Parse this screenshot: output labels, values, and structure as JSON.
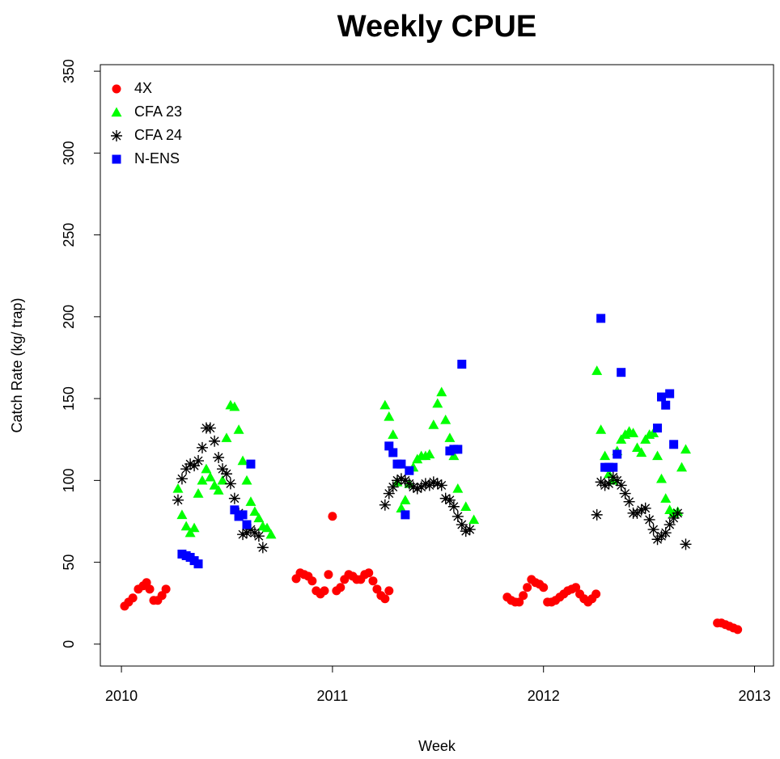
{
  "chart_data": {
    "type": "scatter",
    "title": "Weekly CPUE",
    "xlabel": "Week",
    "ylabel": "Catch Rate (kg/ trap)",
    "xlim": [
      2009.9,
      2013.09
    ],
    "ylim": [
      -13.4,
      354
    ],
    "xticks": [
      2010,
      2011,
      2012,
      2013
    ],
    "yticks": [
      0,
      50,
      100,
      150,
      200,
      250,
      300,
      350
    ],
    "legend": "top-left",
    "grid": false,
    "series": [
      {
        "name": "4X",
        "color": "#ff0000",
        "marker": "circle",
        "x": [
          2010.015,
          2010.034,
          2010.054,
          2010.08,
          2010.103,
          2010.119,
          2010.134,
          2010.153,
          2010.172,
          2010.192,
          2010.211,
          2010.828,
          2010.847,
          2010.866,
          2010.885,
          2010.904,
          2010.923,
          2010.943,
          2010.962,
          2010.981,
          2011.0,
          2011.019,
          2011.038,
          2011.057,
          2011.077,
          2011.096,
          2011.115,
          2011.134,
          2011.153,
          2011.172,
          2011.192,
          2011.211,
          2011.23,
          2011.249,
          2011.268,
          2011.828,
          2011.847,
          2011.866,
          2011.885,
          2011.904,
          2011.923,
          2011.943,
          2011.962,
          2011.981,
          2012.0,
          2012.019,
          2012.038,
          2012.057,
          2012.077,
          2012.096,
          2012.115,
          2012.134,
          2012.153,
          2012.172,
          2012.192,
          2012.211,
          2012.23,
          2012.249,
          2012.824,
          2012.843,
          2012.862,
          2012.881,
          2012.9,
          2012.92
        ],
        "values": [
          23.2,
          25.7,
          28.2,
          33.6,
          35.6,
          37.6,
          33.6,
          26.7,
          26.7,
          29.7,
          33.6,
          40.0,
          43.5,
          42.5,
          41.5,
          38.6,
          32.6,
          30.6,
          32.6,
          42.5,
          78.1,
          32.6,
          34.6,
          39.5,
          42.5,
          41.5,
          39.5,
          39.5,
          42.5,
          43.5,
          38.6,
          33.6,
          29.7,
          27.7,
          32.6,
          28.7,
          26.7,
          25.7,
          25.7,
          29.7,
          34.6,
          39.5,
          37.6,
          36.6,
          34.6,
          25.7,
          25.7,
          26.7,
          28.7,
          30.6,
          32.6,
          33.6,
          34.6,
          30.6,
          27.7,
          25.7,
          27.7,
          30.6,
          12.9,
          12.9,
          11.9,
          10.9,
          9.9,
          8.9
        ]
      },
      {
        "name": "CFA 23",
        "color": "#00ff00",
        "marker": "triangle",
        "x": [
          2010.268,
          2010.287,
          2010.307,
          2010.326,
          2010.345,
          2010.364,
          2010.383,
          2010.402,
          2010.421,
          2010.441,
          2010.46,
          2010.479,
          2010.498,
          2010.517,
          2010.536,
          2010.556,
          2010.575,
          2010.594,
          2010.613,
          2010.632,
          2010.651,
          2010.67,
          2010.69,
          2010.709,
          2011.249,
          2011.268,
          2011.287,
          2011.307,
          2011.326,
          2011.345,
          2011.364,
          2011.383,
          2011.402,
          2011.421,
          2011.441,
          2011.46,
          2011.479,
          2011.498,
          2011.517,
          2011.536,
          2011.556,
          2011.575,
          2011.594,
          2011.632,
          2011.67,
          2012.253,
          2012.272,
          2012.291,
          2012.31,
          2012.33,
          2012.349,
          2012.368,
          2012.387,
          2012.406,
          2012.425,
          2012.444,
          2012.464,
          2012.483,
          2012.502,
          2012.521,
          2012.54,
          2012.559,
          2012.579,
          2012.598,
          2012.617,
          2012.636,
          2012.655,
          2012.674
        ],
        "values": [
          95,
          79,
          72,
          68,
          71,
          92,
          100,
          107,
          102,
          97,
          94,
          100,
          126,
          146,
          145,
          131,
          112,
          100,
          87,
          81,
          77,
          72,
          71,
          67,
          146,
          139,
          128,
          99,
          83,
          88,
          98,
          108,
          113,
          115,
          115,
          116,
          134,
          147,
          154,
          137,
          126,
          115,
          95,
          84,
          76,
          167,
          131,
          115,
          104,
          100,
          118,
          125,
          128,
          130,
          129,
          120,
          117,
          125,
          128,
          129,
          115,
          101,
          89,
          82,
          80,
          81,
          108,
          119
        ]
      },
      {
        "name": "CFA 24",
        "color": "#000000",
        "marker": "asterisk",
        "x": [
          2010.268,
          2010.287,
          2010.307,
          2010.326,
          2010.345,
          2010.364,
          2010.383,
          2010.402,
          2010.421,
          2010.441,
          2010.46,
          2010.479,
          2010.498,
          2010.517,
          2010.536,
          2010.556,
          2010.575,
          2010.594,
          2010.613,
          2010.632,
          2010.651,
          2010.67,
          2011.249,
          2011.268,
          2011.287,
          2011.307,
          2011.326,
          2011.345,
          2011.364,
          2011.383,
          2011.402,
          2011.421,
          2011.441,
          2011.46,
          2011.479,
          2011.498,
          2011.517,
          2011.536,
          2011.556,
          2011.575,
          2011.594,
          2011.613,
          2011.632,
          2011.651,
          2012.253,
          2012.272,
          2012.291,
          2012.31,
          2012.33,
          2012.349,
          2012.368,
          2012.387,
          2012.406,
          2012.425,
          2012.444,
          2012.464,
          2012.483,
          2012.502,
          2012.521,
          2012.54,
          2012.559,
          2012.579,
          2012.598,
          2012.617,
          2012.636,
          2012.674
        ],
        "values": [
          88,
          101,
          107,
          110,
          109,
          112,
          120,
          132,
          132,
          124,
          114,
          107,
          104,
          98,
          89,
          80,
          67,
          68,
          70,
          68,
          66,
          59,
          85,
          92,
          96,
          100,
          101,
          100,
          98,
          96,
          95,
          96,
          98,
          97,
          99,
          98,
          97,
          89,
          88,
          84,
          78,
          73,
          69,
          70,
          79,
          99,
          97,
          98,
          102,
          100,
          97,
          92,
          87,
          80,
          80,
          82,
          83,
          76,
          70,
          64,
          66,
          68,
          73,
          77,
          80,
          61
        ]
      },
      {
        "name": "N-ENS",
        "color": "#0000ff",
        "marker": "square",
        "x": [
          2010.287,
          2010.307,
          2010.326,
          2010.345,
          2010.364,
          2010.536,
          2010.556,
          2010.575,
          2010.594,
          2010.613,
          2011.268,
          2011.287,
          2011.307,
          2011.326,
          2011.345,
          2011.364,
          2011.556,
          2011.575,
          2011.594,
          2011.613,
          2012.272,
          2012.291,
          2012.31,
          2012.33,
          2012.349,
          2012.368,
          2012.54,
          2012.559,
          2012.579,
          2012.598,
          2012.617
        ],
        "values": [
          55,
          54,
          53,
          51,
          49,
          82,
          78,
          79,
          73,
          110,
          121,
          117,
          110,
          110,
          79,
          106,
          118,
          119,
          119,
          171,
          199,
          108,
          108,
          108,
          116,
          166,
          132,
          151,
          146,
          153,
          122
        ]
      }
    ]
  }
}
